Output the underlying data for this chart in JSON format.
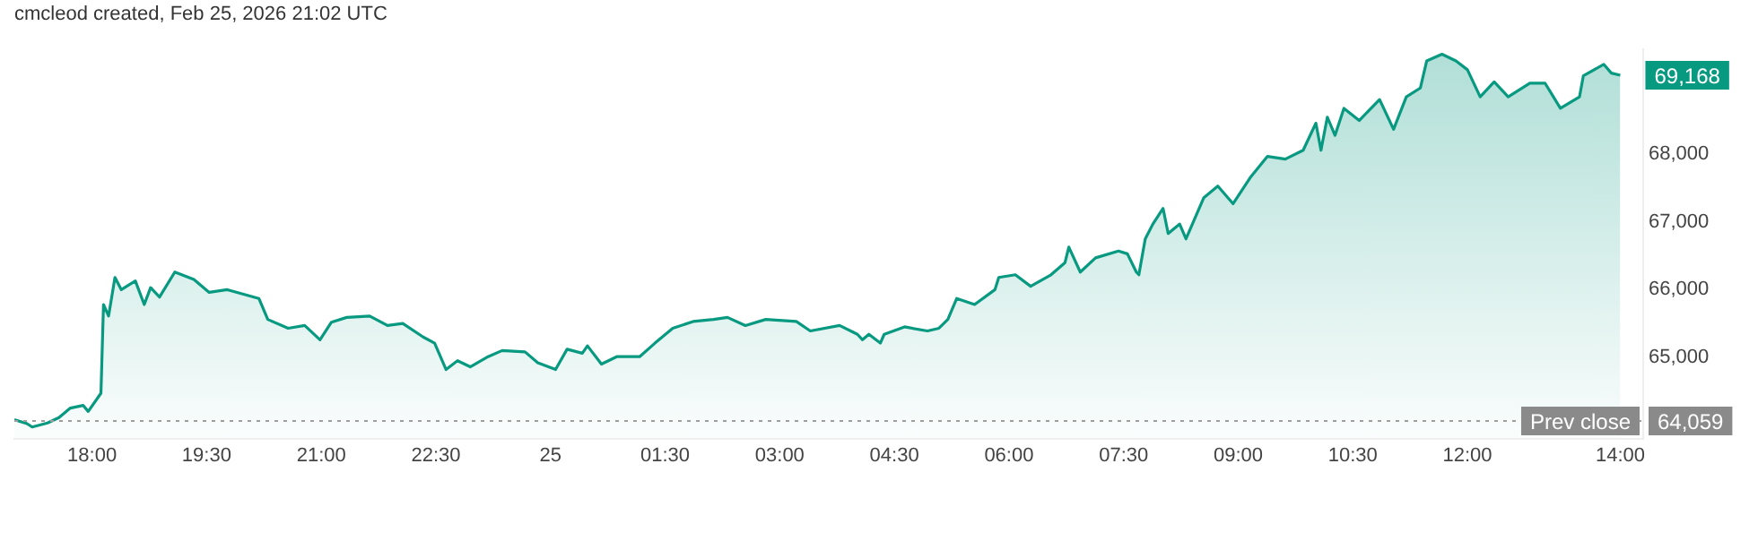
{
  "chart_data": {
    "type": "area",
    "title": "cmcleod created, Feb 25, 2026 21:02 UTC",
    "xlim": [
      "2026-02-24T16:59",
      "2026-02-25T14:18"
    ],
    "xticks": [
      {
        "value": "2026-02-24T18:00",
        "label": "18:00"
      },
      {
        "value": "2026-02-24T19:30",
        "label": "19:30"
      },
      {
        "value": "2026-02-24T21:00",
        "label": "21:00"
      },
      {
        "value": "2026-02-24T22:30",
        "label": "22:30"
      },
      {
        "value": "2026-02-25T00:00",
        "label": "25"
      },
      {
        "value": "2026-02-25T01:30",
        "label": "01:30"
      },
      {
        "value": "2026-02-25T03:00",
        "label": "03:00"
      },
      {
        "value": "2026-02-25T04:30",
        "label": "04:30"
      },
      {
        "value": "2026-02-25T06:00",
        "label": "06:00"
      },
      {
        "value": "2026-02-25T07:30",
        "label": "07:30"
      },
      {
        "value": "2026-02-25T09:00",
        "label": "09:00"
      },
      {
        "value": "2026-02-25T10:30",
        "label": "10:30"
      },
      {
        "value": "2026-02-25T12:00",
        "label": "12:00"
      },
      {
        "value": "2026-02-25T14:00",
        "label": "14:00"
      }
    ],
    "ylim": [
      63800,
      69550
    ],
    "yticks": [
      {
        "value": 65000,
        "label": "65,000"
      },
      {
        "value": 66000,
        "label": "66,000"
      },
      {
        "value": 67000,
        "label": "67,000"
      },
      {
        "value": 68000,
        "label": "68,000"
      }
    ],
    "marker": "none",
    "series": [
      {
        "color": "#089981",
        "x": [
          "2026-02-24T16:59",
          "2026-02-24T17:09",
          "2026-02-24T17:13",
          "2026-02-24T17:25",
          "2026-02-24T17:34",
          "2026-02-24T17:43",
          "2026-02-24T17:53",
          "2026-02-24T17:57",
          "2026-02-24T18:07",
          "2026-02-24T18:09",
          "2026-02-24T18:13",
          "2026-02-24T18:18",
          "2026-02-24T18:23",
          "2026-02-24T18:34",
          "2026-02-24T18:41",
          "2026-02-24T18:46",
          "2026-02-24T18:53",
          "2026-02-24T19:05",
          "2026-02-24T19:20",
          "2026-02-24T19:32",
          "2026-02-24T19:46",
          "2026-02-24T20:11",
          "2026-02-24T20:18",
          "2026-02-24T20:34",
          "2026-02-24T20:47",
          "2026-02-24T20:59",
          "2026-02-24T21:08",
          "2026-02-24T21:20",
          "2026-02-24T21:38",
          "2026-02-24T21:52",
          "2026-02-24T22:04",
          "2026-02-24T22:20",
          "2026-02-24T22:29",
          "2026-02-24T22:38",
          "2026-02-24T22:47",
          "2026-02-24T22:57",
          "2026-02-24T23:11",
          "2026-02-24T23:22",
          "2026-02-24T23:40",
          "2026-02-24T23:50",
          "2026-02-25T00:04",
          "2026-02-25T00:13",
          "2026-02-25T00:25",
          "2026-02-25T00:29",
          "2026-02-25T00:40",
          "2026-02-25T00:52",
          "2026-02-25T01:10",
          "2026-02-25T01:22",
          "2026-02-25T01:36",
          "2026-02-25T01:52",
          "2026-02-25T02:08",
          "2026-02-25T02:19",
          "2026-02-25T02:33",
          "2026-02-25T02:49",
          "2026-02-25T03:13",
          "2026-02-25T03:24",
          "2026-02-25T03:47",
          "2026-02-25T04:01",
          "2026-02-25T04:05",
          "2026-02-25T04:10",
          "2026-02-25T04:19",
          "2026-02-25T04:22",
          "2026-02-25T04:38",
          "2026-02-25T04:56",
          "2026-02-25T05:05",
          "2026-02-25T05:12",
          "2026-02-25T05:19",
          "2026-02-25T05:33",
          "2026-02-25T05:49",
          "2026-02-25T05:52",
          "2026-02-25T06:05",
          "2026-02-25T06:17",
          "2026-02-25T06:33",
          "2026-02-25T06:44",
          "2026-02-25T06:47",
          "2026-02-25T06:56",
          "2026-02-25T07:08",
          "2026-02-25T07:26",
          "2026-02-25T07:33",
          "2026-02-25T07:40",
          "2026-02-25T07:42",
          "2026-02-25T07:47",
          "2026-02-25T07:53",
          "2026-02-25T08:01",
          "2026-02-25T08:05",
          "2026-02-25T08:14",
          "2026-02-25T08:19",
          "2026-02-25T08:33",
          "2026-02-25T08:44",
          "2026-02-25T08:56",
          "2026-02-25T09:10",
          "2026-02-25T09:23",
          "2026-02-25T09:37",
          "2026-02-25T09:51",
          "2026-02-25T10:01",
          "2026-02-25T10:05",
          "2026-02-25T10:10",
          "2026-02-25T10:16",
          "2026-02-25T10:23",
          "2026-02-25T10:35",
          "2026-02-25T10:51",
          "2026-02-25T11:02",
          "2026-02-25T11:12",
          "2026-02-25T11:23",
          "2026-02-25T11:28",
          "2026-02-25T11:40",
          "2026-02-25T11:51",
          "2026-02-25T12:00",
          "2026-02-25T12:10",
          "2026-02-25T12:21",
          "2026-02-25T12:32",
          "2026-02-25T12:49",
          "2026-02-25T13:01",
          "2026-02-25T13:13",
          "2026-02-25T13:28",
          "2026-02-25T13:31",
          "2026-02-25T13:47",
          "2026-02-25T13:53",
          "2026-02-25T14:00"
        ],
        "values": [
          64080,
          64020,
          63970,
          64030,
          64110,
          64250,
          64290,
          64200,
          64470,
          65780,
          65610,
          66180,
          66000,
          66130,
          65780,
          66030,
          65890,
          66260,
          66150,
          65960,
          66000,
          65870,
          65560,
          65430,
          65470,
          65260,
          65520,
          65590,
          65610,
          65470,
          65500,
          65300,
          65210,
          64820,
          64950,
          64860,
          65010,
          65100,
          65080,
          64920,
          64820,
          65120,
          65060,
          65170,
          64900,
          65010,
          65010,
          65210,
          65430,
          65530,
          65560,
          65590,
          65470,
          65560,
          65530,
          65390,
          65470,
          65340,
          65260,
          65340,
          65210,
          65340,
          65450,
          65390,
          65430,
          65560,
          65870,
          65780,
          66000,
          66180,
          66220,
          66050,
          66220,
          66400,
          66630,
          66260,
          66470,
          66570,
          66530,
          66260,
          66220,
          66750,
          66970,
          67200,
          66830,
          66970,
          66750,
          67360,
          67530,
          67270,
          67670,
          67970,
          67930,
          68060,
          68460,
          68060,
          68550,
          68280,
          68680,
          68500,
          68810,
          68370,
          68850,
          68980,
          69380,
          69480,
          69380,
          69250,
          68850,
          69070,
          68850,
          69050,
          69050,
          68680,
          68850,
          69160,
          69330,
          69200,
          69168
        ]
      }
    ],
    "ref_lines": [
      {
        "axis": "y",
        "value": 64059,
        "label": "Prev close",
        "color": "#9e9e9e",
        "line_style": "dotted"
      }
    ],
    "annotations": [
      {
        "text": "69,168",
        "x": "2026-02-25T14:00",
        "y": 69168
      },
      "64,059"
    ]
  }
}
